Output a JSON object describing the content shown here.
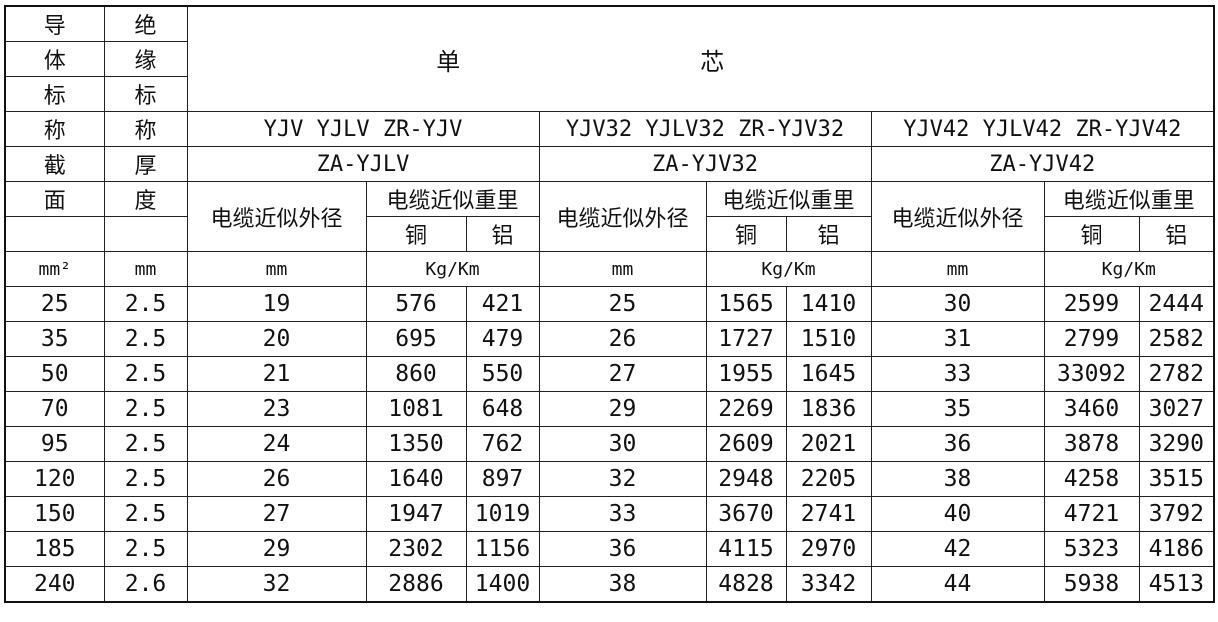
{
  "table": {
    "corner": [
      [
        "导",
        "绝"
      ],
      [
        "体",
        "缘"
      ],
      [
        "标",
        "标"
      ],
      [
        "称",
        "称"
      ],
      [
        "截",
        "厚"
      ],
      [
        "面",
        "度"
      ]
    ],
    "title": "单芯",
    "groups": [
      {
        "model1": "YJV YJLV ZR-YJV",
        "model2": "ZA-YJLV",
        "diameter": "电缆近似外径",
        "weight": "电缆近似重里",
        "cu": "铜",
        "al": "铝",
        "unit_d": "mm",
        "unit_w": "Kg/Km"
      },
      {
        "model1": "YJV32 YJLV32 ZR-YJV32",
        "model2": "ZA-YJV32",
        "diameter": "电缆近似外径",
        "weight": "电缆近似重里",
        "cu": "铜",
        "al": "铝",
        "unit_d": "mm",
        "unit_w": "Kg/Km"
      },
      {
        "model1": "YJV42 YJLV42 ZR-YJV42",
        "model2": "ZA-YJV42",
        "diameter": "电缆近似外径",
        "weight": "电缆近似重里",
        "cu": "铜",
        "al": "铝",
        "unit_d": "mm",
        "unit_w": "Kg/Km"
      }
    ],
    "unit_section": "mm²",
    "unit_thickness": "mm",
    "rows": [
      [
        25,
        2.5,
        19,
        576,
        421,
        25,
        1565,
        1410,
        30,
        2599,
        2444
      ],
      [
        35,
        2.5,
        20,
        695,
        479,
        26,
        1727,
        1510,
        31,
        2799,
        2582
      ],
      [
        50,
        2.5,
        21,
        860,
        550,
        27,
        1955,
        1645,
        33,
        33092,
        2782
      ],
      [
        70,
        2.5,
        23,
        1081,
        648,
        29,
        2269,
        1836,
        35,
        3460,
        3027
      ],
      [
        95,
        2.5,
        24,
        1350,
        762,
        30,
        2609,
        2021,
        36,
        3878,
        3290
      ],
      [
        120,
        2.5,
        26,
        1640,
        897,
        32,
        2948,
        2205,
        38,
        4258,
        3515
      ],
      [
        150,
        2.5,
        27,
        1947,
        1019,
        33,
        3670,
        2741,
        40,
        4721,
        3792
      ],
      [
        185,
        2.5,
        29,
        2302,
        1156,
        36,
        4115,
        2970,
        42,
        5323,
        4186
      ],
      [
        240,
        2.6,
        32,
        2886,
        1400,
        38,
        4828,
        3342,
        44,
        5938,
        4513
      ]
    ]
  }
}
